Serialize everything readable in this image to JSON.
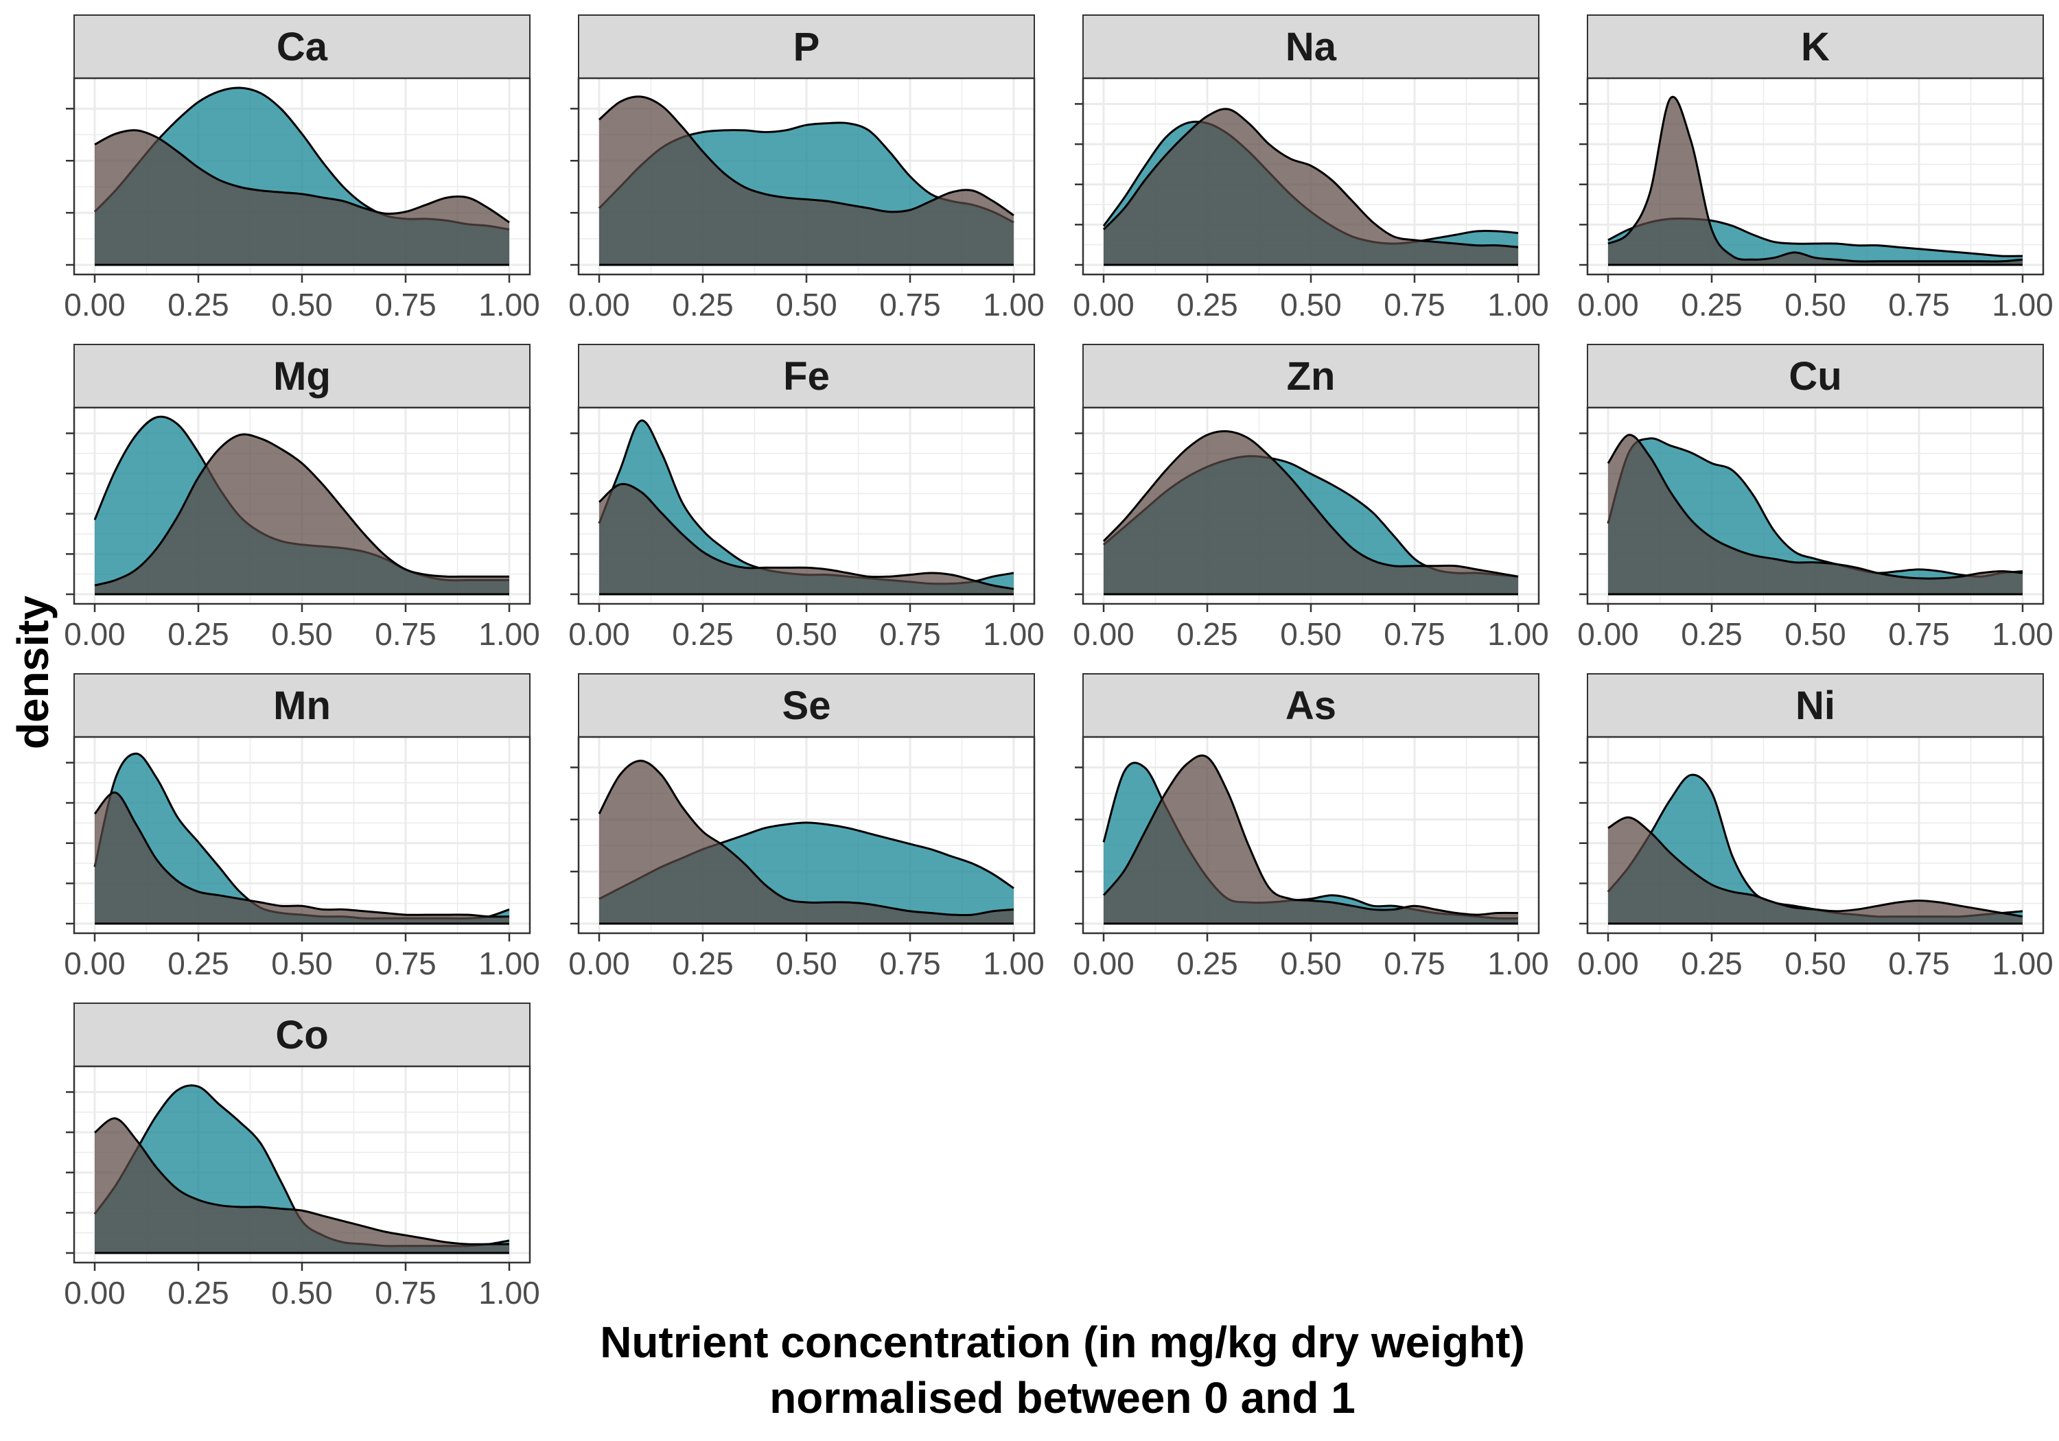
{
  "colors": {
    "teal": "#1f8a9a",
    "brown": "#5a4844",
    "strip_fill": "#d9d9d9",
    "panel_border": "#333333",
    "grid": "#ebebeb"
  },
  "chart_data": {
    "type": "area",
    "subtype": "faceted density, two overlapping groups",
    "xlabel_line1": "Nutrient concentration (in mg/kg dry weight)",
    "xlabel_line2": "normalised between 0 and 1",
    "ylabel": "density",
    "xlim": [
      0,
      1
    ],
    "x_ticks": [
      "0.00",
      "0.25",
      "0.50",
      "0.75",
      "1.00"
    ],
    "y_tick_labels_shown": false,
    "grid": true,
    "legend": "none",
    "series_colors": [
      "#1f8a9a",
      "#5a4844"
    ],
    "x": [
      0,
      0.05,
      0.1,
      0.15,
      0.2,
      0.25,
      0.3,
      0.35,
      0.4,
      0.45,
      0.5,
      0.55,
      0.6,
      0.65,
      0.7,
      0.75,
      0.8,
      0.85,
      0.9,
      0.95,
      1
    ],
    "facets": [
      {
        "name": "Ca",
        "y_ticks": 4,
        "series": [
          {
            "values": [
              0.3,
              0.42,
              0.56,
              0.7,
              0.82,
              0.92,
              0.98,
              1.0,
              0.97,
              0.88,
              0.74,
              0.58,
              0.44,
              0.34,
              0.28,
              0.26,
              0.26,
              0.25,
              0.23,
              0.22,
              0.2
            ]
          },
          {
            "values": [
              0.68,
              0.74,
              0.76,
              0.72,
              0.64,
              0.55,
              0.48,
              0.44,
              0.42,
              0.41,
              0.4,
              0.38,
              0.36,
              0.32,
              0.29,
              0.3,
              0.34,
              0.38,
              0.38,
              0.32,
              0.24
            ]
          }
        ]
      },
      {
        "name": "P",
        "y_ticks": 4,
        "series": [
          {
            "values": [
              0.32,
              0.44,
              0.56,
              0.66,
              0.72,
              0.75,
              0.76,
              0.76,
              0.75,
              0.76,
              0.79,
              0.8,
              0.8,
              0.76,
              0.64,
              0.5,
              0.4,
              0.36,
              0.34,
              0.3,
              0.24
            ]
          },
          {
            "values": [
              0.82,
              0.92,
              0.95,
              0.9,
              0.78,
              0.64,
              0.52,
              0.44,
              0.4,
              0.38,
              0.37,
              0.36,
              0.34,
              0.32,
              0.3,
              0.31,
              0.36,
              0.41,
              0.42,
              0.36,
              0.28
            ]
          }
        ]
      },
      {
        "name": "Na",
        "y_ticks": 5,
        "series": [
          {
            "values": [
              0.22,
              0.38,
              0.56,
              0.72,
              0.8,
              0.8,
              0.74,
              0.64,
              0.52,
              0.4,
              0.3,
              0.22,
              0.16,
              0.13,
              0.12,
              0.13,
              0.15,
              0.17,
              0.19,
              0.19,
              0.18
            ]
          },
          {
            "values": [
              0.2,
              0.32,
              0.48,
              0.62,
              0.74,
              0.84,
              0.88,
              0.8,
              0.68,
              0.6,
              0.56,
              0.48,
              0.36,
              0.24,
              0.16,
              0.14,
              0.13,
              0.12,
              0.11,
              0.11,
              0.1
            ]
          }
        ]
      },
      {
        "name": "K",
        "y_ticks": 5,
        "series": [
          {
            "values": [
              0.14,
              0.2,
              0.24,
              0.26,
              0.26,
              0.25,
              0.22,
              0.17,
              0.13,
              0.12,
              0.12,
              0.12,
              0.11,
              0.11,
              0.1,
              0.09,
              0.08,
              0.07,
              0.06,
              0.05,
              0.05
            ]
          },
          {
            "values": [
              0.12,
              0.18,
              0.4,
              0.94,
              0.7,
              0.2,
              0.05,
              0.03,
              0.04,
              0.07,
              0.04,
              0.03,
              0.02,
              0.02,
              0.02,
              0.02,
              0.02,
              0.02,
              0.02,
              0.02,
              0.03
            ]
          }
        ]
      },
      {
        "name": "Mg",
        "y_ticks": 5,
        "series": [
          {
            "values": [
              0.42,
              0.7,
              0.9,
              1.0,
              0.96,
              0.8,
              0.6,
              0.44,
              0.35,
              0.3,
              0.28,
              0.27,
              0.26,
              0.24,
              0.2,
              0.14,
              0.1,
              0.08,
              0.08,
              0.08,
              0.08
            ]
          },
          {
            "values": [
              0.05,
              0.08,
              0.14,
              0.26,
              0.44,
              0.66,
              0.82,
              0.9,
              0.88,
              0.82,
              0.74,
              0.62,
              0.48,
              0.34,
              0.22,
              0.14,
              0.11,
              0.1,
              0.1,
              0.1,
              0.1
            ]
          }
        ]
      },
      {
        "name": "Fe",
        "y_ticks": 5,
        "series": [
          {
            "values": [
              0.4,
              0.7,
              0.98,
              0.8,
              0.52,
              0.36,
              0.26,
              0.18,
              0.14,
              0.12,
              0.11,
              0.11,
              0.1,
              0.09,
              0.08,
              0.07,
              0.06,
              0.06,
              0.07,
              0.1,
              0.12
            ]
          },
          {
            "values": [
              0.52,
              0.62,
              0.58,
              0.46,
              0.34,
              0.24,
              0.18,
              0.15,
              0.15,
              0.15,
              0.15,
              0.14,
              0.12,
              0.1,
              0.1,
              0.11,
              0.12,
              0.11,
              0.08,
              0.05,
              0.03
            ]
          }
        ]
      },
      {
        "name": "Zn",
        "y_ticks": 5,
        "series": [
          {
            "values": [
              0.28,
              0.38,
              0.48,
              0.58,
              0.66,
              0.72,
              0.76,
              0.78,
              0.77,
              0.74,
              0.68,
              0.62,
              0.55,
              0.46,
              0.33,
              0.2,
              0.14,
              0.12,
              0.12,
              0.11,
              0.1
            ]
          },
          {
            "values": [
              0.3,
              0.42,
              0.56,
              0.7,
              0.82,
              0.9,
              0.92,
              0.88,
              0.78,
              0.66,
              0.52,
              0.38,
              0.26,
              0.19,
              0.16,
              0.16,
              0.16,
              0.16,
              0.14,
              0.12,
              0.1
            ]
          }
        ]
      },
      {
        "name": "Cu",
        "y_ticks": 5,
        "series": [
          {
            "values": [
              0.4,
              0.8,
              0.88,
              0.84,
              0.8,
              0.74,
              0.7,
              0.56,
              0.36,
              0.24,
              0.2,
              0.17,
              0.14,
              0.12,
              0.13,
              0.14,
              0.13,
              0.11,
              0.1,
              0.12,
              0.13
            ]
          },
          {
            "values": [
              0.74,
              0.9,
              0.78,
              0.58,
              0.42,
              0.32,
              0.26,
              0.22,
              0.2,
              0.18,
              0.18,
              0.17,
              0.15,
              0.12,
              0.1,
              0.09,
              0.09,
              0.1,
              0.12,
              0.13,
              0.12
            ]
          }
        ]
      },
      {
        "name": "Mn",
        "y_ticks": 5,
        "series": [
          {
            "values": [
              0.32,
              0.82,
              0.96,
              0.82,
              0.6,
              0.46,
              0.32,
              0.18,
              0.09,
              0.06,
              0.05,
              0.04,
              0.04,
              0.03,
              0.03,
              0.03,
              0.03,
              0.03,
              0.03,
              0.04,
              0.08
            ]
          },
          {
            "values": [
              0.62,
              0.74,
              0.56,
              0.36,
              0.24,
              0.18,
              0.16,
              0.14,
              0.12,
              0.1,
              0.1,
              0.08,
              0.08,
              0.07,
              0.06,
              0.05,
              0.05,
              0.05,
              0.05,
              0.04,
              0.04
            ]
          }
        ]
      },
      {
        "name": "Se",
        "y_ticks": 4,
        "series": [
          {
            "values": [
              0.14,
              0.2,
              0.26,
              0.32,
              0.37,
              0.42,
              0.46,
              0.5,
              0.54,
              0.56,
              0.57,
              0.56,
              0.54,
              0.51,
              0.48,
              0.45,
              0.42,
              0.38,
              0.34,
              0.28,
              0.2
            ]
          },
          {
            "values": [
              0.62,
              0.84,
              0.92,
              0.84,
              0.66,
              0.52,
              0.44,
              0.34,
              0.22,
              0.14,
              0.12,
              0.12,
              0.12,
              0.11,
              0.09,
              0.07,
              0.06,
              0.05,
              0.05,
              0.07,
              0.08
            ]
          }
        ]
      },
      {
        "name": "As",
        "y_ticks": 4,
        "series": [
          {
            "values": [
              0.46,
              0.86,
              0.88,
              0.66,
              0.44,
              0.26,
              0.14,
              0.12,
              0.12,
              0.13,
              0.14,
              0.16,
              0.14,
              0.1,
              0.1,
              0.08,
              0.06,
              0.05,
              0.04,
              0.03,
              0.03
            ]
          },
          {
            "values": [
              0.16,
              0.3,
              0.52,
              0.74,
              0.9,
              0.94,
              0.74,
              0.44,
              0.2,
              0.14,
              0.13,
              0.12,
              0.1,
              0.08,
              0.08,
              0.1,
              0.08,
              0.06,
              0.05,
              0.06,
              0.06
            ]
          }
        ]
      },
      {
        "name": "Ni",
        "y_ticks": 5,
        "series": [
          {
            "values": [
              0.18,
              0.32,
              0.5,
              0.7,
              0.84,
              0.74,
              0.38,
              0.18,
              0.12,
              0.1,
              0.08,
              0.06,
              0.05,
              0.04,
              0.04,
              0.04,
              0.04,
              0.04,
              0.05,
              0.06,
              0.07
            ]
          },
          {
            "values": [
              0.54,
              0.6,
              0.52,
              0.4,
              0.3,
              0.22,
              0.18,
              0.16,
              0.12,
              0.09,
              0.08,
              0.07,
              0.08,
              0.1,
              0.12,
              0.13,
              0.12,
              0.1,
              0.08,
              0.06,
              0.04
            ]
          }
        ]
      },
      {
        "name": "Co",
        "y_ticks": 5,
        "series": [
          {
            "values": [
              0.22,
              0.38,
              0.58,
              0.78,
              0.92,
              0.94,
              0.84,
              0.74,
              0.62,
              0.4,
              0.18,
              0.1,
              0.06,
              0.05,
              0.04,
              0.04,
              0.04,
              0.04,
              0.04,
              0.05,
              0.07
            ]
          },
          {
            "values": [
              0.68,
              0.76,
              0.64,
              0.48,
              0.36,
              0.3,
              0.27,
              0.26,
              0.26,
              0.25,
              0.24,
              0.21,
              0.18,
              0.15,
              0.12,
              0.1,
              0.08,
              0.06,
              0.05,
              0.05,
              0.05
            ]
          }
        ]
      }
    ]
  }
}
